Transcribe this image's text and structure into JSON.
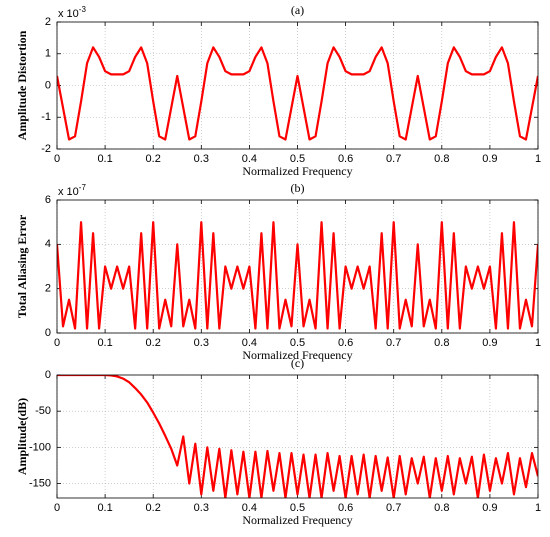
{
  "chart_data": [
    {
      "type": "line",
      "title": "(a)",
      "xlabel": "Normalized Frequency",
      "ylabel": "Amplitude Distortion",
      "y_multiplier": {
        "base": "x 10",
        "exponent": "-3"
      },
      "x": [
        0,
        0.0125,
        0.025,
        0.0375,
        0.05,
        0.0625,
        0.075,
        0.0875,
        0.1,
        0.1125,
        0.125,
        0.1375,
        0.15,
        0.1625,
        0.175,
        0.1875,
        0.2,
        0.2125,
        0.225,
        0.2375,
        0.25,
        0.2625,
        0.275,
        0.2875,
        0.3,
        0.3125,
        0.325,
        0.3375,
        0.35,
        0.3625,
        0.375,
        0.3875,
        0.4,
        0.4125,
        0.425,
        0.4375,
        0.45,
        0.4625,
        0.475,
        0.4875,
        0.5,
        0.5125,
        0.525,
        0.5375,
        0.55,
        0.5625,
        0.575,
        0.5875,
        0.6,
        0.6125,
        0.625,
        0.6375,
        0.65,
        0.6625,
        0.675,
        0.6875,
        0.7,
        0.7125,
        0.725,
        0.7375,
        0.75,
        0.7625,
        0.775,
        0.7875,
        0.8,
        0.8125,
        0.825,
        0.8375,
        0.85,
        0.8625,
        0.875,
        0.8875,
        0.9,
        0.9125,
        0.925,
        0.9375,
        0.95,
        0.9625,
        0.975,
        0.9875,
        1
      ],
      "values": [
        0.3,
        -0.7,
        -1.7,
        -1.6,
        -0.5,
        0.7,
        1.2,
        0.9,
        0.45,
        0.35,
        0.35,
        0.35,
        0.45,
        0.9,
        1.2,
        0.7,
        -0.5,
        -1.6,
        -1.7,
        -0.7,
        0.3,
        -0.7,
        -1.7,
        -1.6,
        -0.5,
        0.7,
        1.2,
        0.9,
        0.45,
        0.35,
        0.35,
        0.35,
        0.45,
        0.9,
        1.2,
        0.7,
        -0.5,
        -1.6,
        -1.7,
        -0.7,
        0.3,
        -0.7,
        -1.7,
        -1.6,
        -0.5,
        0.7,
        1.2,
        0.9,
        0.45,
        0.35,
        0.35,
        0.35,
        0.45,
        0.9,
        1.2,
        0.7,
        -0.5,
        -1.6,
        -1.7,
        -0.7,
        0.3,
        -0.7,
        -1.7,
        -1.6,
        -0.5,
        0.7,
        1.2,
        0.9,
        0.45,
        0.35,
        0.35,
        0.35,
        0.45,
        0.9,
        1.2,
        0.7,
        -0.5,
        -1.6,
        -1.7,
        -0.7,
        0.3
      ],
      "color": "#ff0000",
      "xlim": [
        0,
        1
      ],
      "xticks": [
        0,
        0.1,
        0.2,
        0.3,
        0.4,
        0.5,
        0.6,
        0.7,
        0.8,
        0.9,
        1
      ],
      "ylim": [
        -2,
        2
      ],
      "yticks": [
        -2,
        -1,
        0,
        1,
        2
      ],
      "grid": true
    },
    {
      "type": "line",
      "title": "(b)",
      "xlabel": "Normalized Frequency",
      "ylabel": "Total Aliasing Error",
      "y_multiplier": {
        "base": "x 10",
        "exponent": "-7"
      },
      "x": [
        0,
        0.0125,
        0.025,
        0.0375,
        0.05,
        0.0625,
        0.075,
        0.0875,
        0.1,
        0.1125,
        0.125,
        0.1375,
        0.15,
        0.1625,
        0.175,
        0.1875,
        0.2,
        0.2125,
        0.225,
        0.2375,
        0.25,
        0.2625,
        0.275,
        0.2875,
        0.3,
        0.3125,
        0.325,
        0.3375,
        0.35,
        0.3625,
        0.375,
        0.3875,
        0.4,
        0.4125,
        0.425,
        0.4375,
        0.45,
        0.4625,
        0.475,
        0.4875,
        0.5,
        0.5125,
        0.525,
        0.5375,
        0.55,
        0.5625,
        0.575,
        0.5875,
        0.6,
        0.6125,
        0.625,
        0.6375,
        0.65,
        0.6625,
        0.675,
        0.6875,
        0.7,
        0.7125,
        0.725,
        0.7375,
        0.75,
        0.7625,
        0.775,
        0.7875,
        0.8,
        0.8125,
        0.825,
        0.8375,
        0.85,
        0.8625,
        0.875,
        0.8875,
        0.9,
        0.9125,
        0.925,
        0.9375,
        0.95,
        0.9625,
        0.975,
        0.9875,
        1
      ],
      "values": [
        4.0,
        0.3,
        1.5,
        0.2,
        5.0,
        0.2,
        4.5,
        0.2,
        3.0,
        2.0,
        3.0,
        2.0,
        3.0,
        0.2,
        4.5,
        0.2,
        5.0,
        0.2,
        1.5,
        0.3,
        4.0,
        0.3,
        1.5,
        0.2,
        5.0,
        0.2,
        4.5,
        0.2,
        3.0,
        2.0,
        3.0,
        2.0,
        3.0,
        0.2,
        4.5,
        0.2,
        5.0,
        0.2,
        1.5,
        0.3,
        4.0,
        0.3,
        1.5,
        0.2,
        5.0,
        0.2,
        4.5,
        0.2,
        3.0,
        2.0,
        3.0,
        2.0,
        3.0,
        0.2,
        4.5,
        0.2,
        5.0,
        0.2,
        1.5,
        0.3,
        4.0,
        0.3,
        1.5,
        0.2,
        5.0,
        0.2,
        4.5,
        0.2,
        3.0,
        2.0,
        3.0,
        2.0,
        3.0,
        0.2,
        4.5,
        0.2,
        5.0,
        0.2,
        1.5,
        0.3,
        4.0
      ],
      "color": "#ff0000",
      "xlim": [
        0,
        1
      ],
      "xticks": [
        0,
        0.1,
        0.2,
        0.3,
        0.4,
        0.5,
        0.6,
        0.7,
        0.8,
        0.9,
        1
      ],
      "ylim": [
        0,
        6
      ],
      "yticks": [
        0,
        2,
        4,
        6
      ],
      "grid": true
    },
    {
      "type": "line",
      "title": "(c)",
      "xlabel": "Normalized Frequency",
      "ylabel": "Amplitude(dB)",
      "x": [
        0,
        0.0125,
        0.025,
        0.0375,
        0.05,
        0.0625,
        0.075,
        0.0875,
        0.1,
        0.1125,
        0.125,
        0.1375,
        0.15,
        0.1625,
        0.175,
        0.1875,
        0.2,
        0.2125,
        0.225,
        0.2375,
        0.25,
        0.2625,
        0.275,
        0.2875,
        0.3,
        0.3125,
        0.325,
        0.3375,
        0.35,
        0.3625,
        0.375,
        0.3875,
        0.4,
        0.4125,
        0.425,
        0.4375,
        0.45,
        0.4625,
        0.475,
        0.4875,
        0.5,
        0.5125,
        0.525,
        0.5375,
        0.55,
        0.5625,
        0.575,
        0.5875,
        0.6,
        0.6125,
        0.625,
        0.6375,
        0.65,
        0.6625,
        0.675,
        0.6875,
        0.7,
        0.7125,
        0.725,
        0.7375,
        0.75,
        0.7625,
        0.775,
        0.7875,
        0.8,
        0.8125,
        0.825,
        0.8375,
        0.85,
        0.8625,
        0.875,
        0.8875,
        0.9,
        0.9125,
        0.925,
        0.9375,
        0.95,
        0.9625,
        0.975,
        0.9875,
        1
      ],
      "values": [
        0,
        0,
        0,
        0,
        0,
        0,
        0,
        0,
        0,
        -0.5,
        -2,
        -5,
        -10,
        -18,
        -27,
        -38,
        -52,
        -67,
        -84,
        -102,
        -125,
        -85,
        -150,
        -95,
        -165,
        -100,
        -160,
        -102,
        -170,
        -104,
        -165,
        -106,
        -170,
        -106,
        -170,
        -105,
        -160,
        -108,
        -170,
        -108,
        -165,
        -110,
        -170,
        -110,
        -170,
        -108,
        -160,
        -112,
        -170,
        -112,
        -165,
        -110,
        -170,
        -112,
        -160,
        -114,
        -170,
        -112,
        -165,
        -115,
        -150,
        -113,
        -170,
        -115,
        -160,
        -112,
        -165,
        -115,
        -150,
        -113,
        -170,
        -110,
        -160,
        -115,
        -150,
        -108,
        -165,
        -115,
        -155,
        -108,
        -140
      ],
      "color": "#ff0000",
      "xlim": [
        0,
        1
      ],
      "xticks": [
        0,
        0.1,
        0.2,
        0.3,
        0.4,
        0.5,
        0.6,
        0.7,
        0.8,
        0.9,
        1
      ],
      "ylim": [
        -170,
        0
      ],
      "yticks": [
        -150,
        -100,
        -50,
        0
      ],
      "grid": true
    }
  ]
}
